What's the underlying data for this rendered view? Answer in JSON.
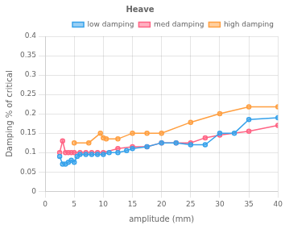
{
  "chart_data": {
    "type": "line",
    "title": "Heave",
    "xlabel": "amplitude (mm)",
    "ylabel": "Damping % of critical",
    "xlim": [
      0,
      40
    ],
    "ylim": [
      0,
      0.4
    ],
    "xticks": [
      0,
      5,
      10,
      15,
      20,
      25,
      30,
      35,
      40
    ],
    "yticks": [
      0,
      0.05,
      0.1,
      0.15,
      0.2,
      0.25,
      0.3,
      0.35,
      0.4
    ],
    "grid": true,
    "legend": "upper right",
    "marker": "o",
    "series": [
      {
        "name": "low damping",
        "x": [
          2.5,
          3.0,
          3.5,
          4.0,
          4.5,
          5.0,
          5.5,
          6.0,
          7.0,
          8.0,
          9.0,
          10.0,
          11.0,
          12.5,
          14.0,
          15.0,
          17.5,
          20.0,
          22.5,
          25.0,
          27.5,
          30.0,
          32.5,
          35.0,
          40.0
        ],
        "values": [
          0.09,
          0.07,
          0.07,
          0.075,
          0.08,
          0.075,
          0.09,
          0.095,
          0.095,
          0.095,
          0.095,
          0.095,
          0.1,
          0.1,
          0.105,
          0.11,
          0.115,
          0.125,
          0.125,
          0.12,
          0.12,
          0.15,
          0.15,
          0.185,
          0.19
        ]
      },
      {
        "name": "med damping",
        "x": [
          2.5,
          3.0,
          3.5,
          4.0,
          4.5,
          5.0,
          6.0,
          7.0,
          8.0,
          9.0,
          10.0,
          12.5,
          15.0,
          17.5,
          20.0,
          22.5,
          25.0,
          27.5,
          30.0,
          35.0,
          40.0
        ],
        "values": [
          0.1,
          0.13,
          0.1,
          0.1,
          0.1,
          0.1,
          0.1,
          0.1,
          0.1,
          0.1,
          0.1,
          0.11,
          0.115,
          0.115,
          0.125,
          0.125,
          0.125,
          0.138,
          0.145,
          0.155,
          0.17
        ]
      },
      {
        "name": "high damping",
        "x": [
          5.0,
          7.5,
          9.5,
          10.0,
          10.5,
          12.5,
          15.0,
          17.5,
          20.0,
          25.0,
          30.0,
          35.0,
          40.0
        ],
        "values": [
          0.125,
          0.125,
          0.15,
          0.138,
          0.135,
          0.135,
          0.15,
          0.15,
          0.15,
          0.178,
          0.2,
          0.218,
          0.218
        ]
      }
    ]
  }
}
